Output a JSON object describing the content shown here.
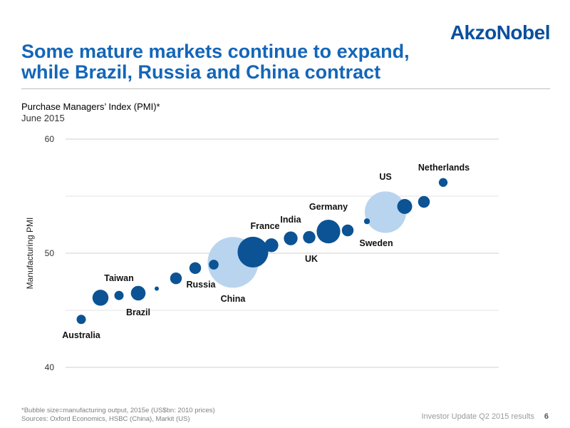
{
  "header": {
    "logo": "AkzoNobel",
    "title_line1": "Some mature markets continue to expand,",
    "title_line2": "while Brazil, Russia and China contract"
  },
  "chart_data": {
    "type": "scatter",
    "title": "Purchase Managers’ Index (PMI)*",
    "subtitle": "June 2015",
    "ylabel": "Manufacturing PMI",
    "ylim": [
      40,
      60
    ],
    "yticks": [
      40,
      50,
      60
    ],
    "grid": true,
    "points": [
      {
        "label": "Australia",
        "y": 44.2,
        "size": 1
      },
      {
        "label": "",
        "y": 46.1,
        "size": 3
      },
      {
        "label": "Taiwan",
        "y": 46.3,
        "size": 1
      },
      {
        "label": "Brazil",
        "y": 46.5,
        "size": 2.5
      },
      {
        "label": "",
        "y": 46.9,
        "size": 0.2
      },
      {
        "label": "",
        "y": 47.8,
        "size": 1.6
      },
      {
        "label": "Russia",
        "y": 48.7,
        "size": 1.6
      },
      {
        "label": "",
        "y": 49.0,
        "size": 1.1
      },
      {
        "label": "China",
        "y": 49.2,
        "size": 30
      },
      {
        "label": "France",
        "y": 50.1,
        "size": 11
      },
      {
        "label": "",
        "y": 50.7,
        "size": 2.2
      },
      {
        "label": "India",
        "y": 51.3,
        "size": 2.2
      },
      {
        "label": "UK",
        "y": 51.4,
        "size": 1.8
      },
      {
        "label": "Germany",
        "y": 51.9,
        "size": 6.5
      },
      {
        "label": "",
        "y": 52.0,
        "size": 1.6
      },
      {
        "label": "Sweden",
        "y": 52.8,
        "size": 0.4
      },
      {
        "label": "US",
        "y": 53.6,
        "size": 20
      },
      {
        "label": "",
        "y": 54.1,
        "size": 2.6
      },
      {
        "label": "",
        "y": 54.5,
        "size": 1.6
      },
      {
        "label": "Netherlands",
        "y": 56.2,
        "size": 0.9
      }
    ],
    "colors": {
      "default": "#0b5394",
      "highlight": "#b9d4ee"
    },
    "highlight_labels": [
      "China",
      "US"
    ]
  },
  "footnotes": {
    "note1": "*Bubble size=manufacturing output, 2015e (US$bn: 2010 prices)",
    "note2": "Sources: Oxford Economics, HSBC (China), Markit (US)"
  },
  "footer": {
    "text": "Investor Update Q2 2015 results",
    "page": "6"
  }
}
